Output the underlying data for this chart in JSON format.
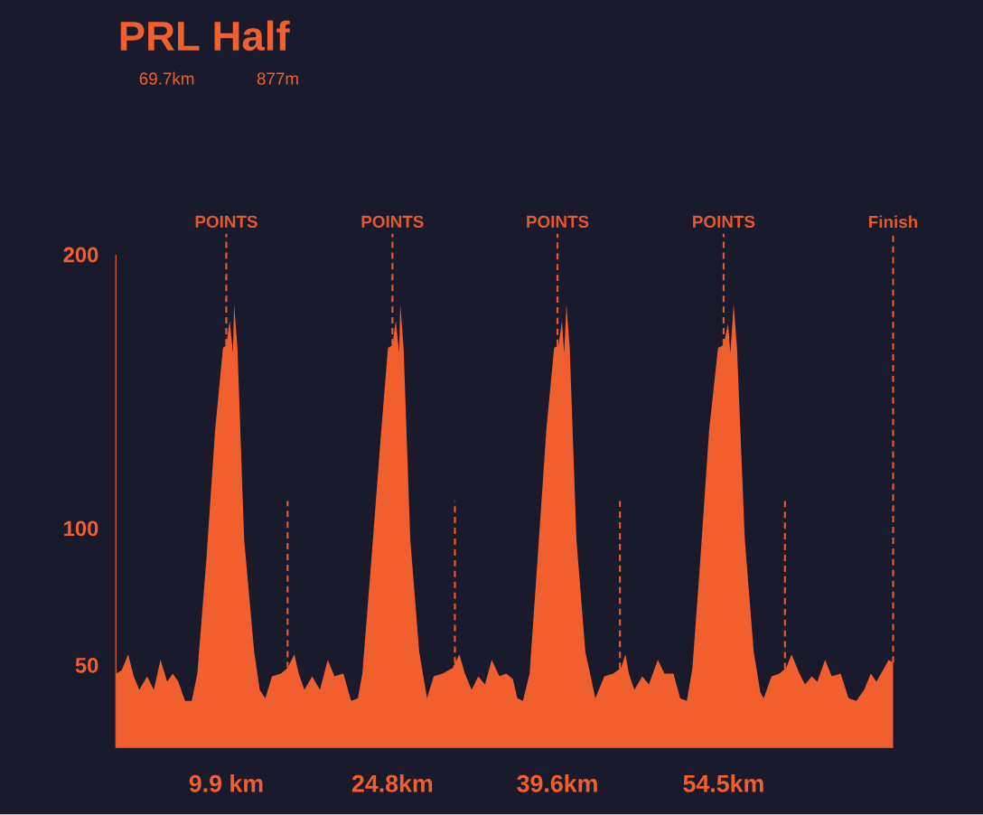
{
  "chart_data": {
    "type": "area",
    "title": "PRL Half",
    "annotations": [
      "69.7km",
      "877m"
    ],
    "x": [
      0,
      0.5,
      1.1,
      1.6,
      2.1,
      2.8,
      3.4,
      4.0,
      4.6,
      5.1,
      5.6,
      6.2,
      6.8,
      7.3,
      8.1,
      8.9,
      9.6,
      9.9,
      10.2,
      10.5,
      10.6,
      10.9,
      11.5,
      12.4,
      12.9,
      13.4,
      14.0,
      14.8,
      15.4,
      16.0,
      16.4,
      16.9,
      17.6,
      18.3,
      19.0,
      19.6,
      20.4,
      21.1,
      21.7,
      22.1,
      22.9,
      23.8,
      24.4,
      24.8,
      25.1,
      25.4,
      25.5,
      25.8,
      26.4,
      27.2,
      27.9,
      28.5,
      29.3,
      30.2,
      30.8,
      31.3,
      31.9,
      32.5,
      33.1,
      33.7,
      34.4,
      35.0,
      35.6,
      36.0,
      36.5,
      37.1,
      37.8,
      38.6,
      39.3,
      39.7,
      40.0,
      40.2,
      40.4,
      40.7,
      41.3,
      42.1,
      43.0,
      43.8,
      44.6,
      45.3,
      45.7,
      46.0,
      46.5,
      47.2,
      47.8,
      48.6,
      49.2,
      50.0,
      50.6,
      51.2,
      51.7,
      52.4,
      53.2,
      54.0,
      54.5,
      54.9,
      55.1,
      55.4,
      55.7,
      56.4,
      57.2,
      57.8,
      58.1,
      58.8,
      59.5,
      60.1,
      60.6,
      61.3,
      61.8,
      62.4,
      62.9,
      63.6,
      64.2,
      65.0,
      65.7,
      66.4,
      67.1,
      67.7,
      68.2,
      68.9,
      69.3,
      69.7
    ],
    "values": [
      47,
      48,
      54,
      46,
      41,
      46,
      41,
      52,
      44,
      47,
      44,
      37,
      37,
      47,
      88,
      136,
      166,
      167,
      176,
      164,
      182,
      166,
      96,
      55,
      41,
      38,
      46,
      47,
      49,
      54,
      47,
      41,
      46,
      41,
      52,
      46,
      47,
      37,
      38,
      47,
      88,
      136,
      166,
      167,
      176,
      164,
      182,
      166,
      96,
      55,
      38,
      46,
      47,
      49,
      54,
      47,
      41,
      46,
      43,
      52,
      46,
      47,
      45,
      38,
      37,
      47,
      88,
      136,
      166,
      167,
      176,
      164,
      182,
      166,
      96,
      55,
      38,
      46,
      47,
      49,
      54,
      47,
      41,
      46,
      43,
      52,
      47,
      47,
      38,
      37,
      49,
      88,
      136,
      166,
      167,
      175,
      164,
      182,
      166,
      96,
      55,
      40,
      38,
      46,
      47,
      49,
      54,
      47,
      43,
      46,
      44,
      52,
      46,
      47,
      38,
      37,
      41,
      47,
      44,
      49,
      52,
      51
    ],
    "color": "#f15f2e",
    "xlim": [
      0,
      69.7
    ],
    "xticks": [
      {
        "value": 9.9,
        "label": "9.9 km"
      },
      {
        "value": 24.8,
        "label": "24.8km"
      },
      {
        "value": 39.6,
        "label": "39.6km"
      },
      {
        "value": 54.5,
        "label": "54.5km"
      }
    ],
    "ylim": [
      20,
      200
    ],
    "yticks": [
      50,
      100,
      200
    ],
    "ref_lines": [
      {
        "axis": "x",
        "value": 9.9,
        "label": "POINTS",
        "color": "#e5592c",
        "line_style": "dashed"
      },
      {
        "axis": "x",
        "value": 24.8,
        "label": "POINTS",
        "color": "#e5592c",
        "line_style": "dashed"
      },
      {
        "axis": "x",
        "value": 39.6,
        "label": "POINTS",
        "color": "#e5592c",
        "line_style": "dashed"
      },
      {
        "axis": "x",
        "value": 54.5,
        "label": "POINTS",
        "color": "#e5592c",
        "line_style": "dashed"
      },
      {
        "axis": "x",
        "value": 15.4,
        "color": "#e5592c",
        "line_style": "dashed"
      },
      {
        "axis": "x",
        "value": 30.4,
        "color": "#e5592c",
        "line_style": "dashed"
      },
      {
        "axis": "x",
        "value": 45.2,
        "color": "#e5592c",
        "line_style": "dashed"
      },
      {
        "axis": "x",
        "value": 60.0,
        "color": "#e5592c",
        "line_style": "dashed"
      },
      {
        "axis": "x",
        "value": 69.7,
        "label": "Finish",
        "color": "#e5592c",
        "line_style": "dashed"
      }
    ]
  }
}
